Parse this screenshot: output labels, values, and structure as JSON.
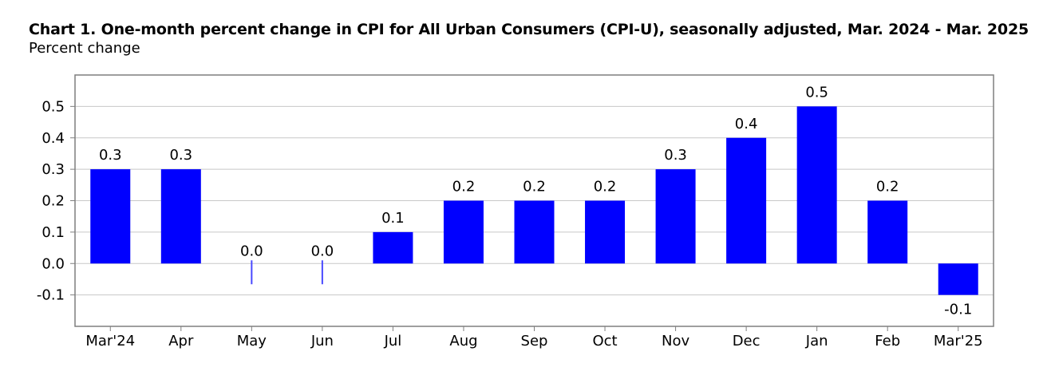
{
  "chart_data": {
    "type": "bar",
    "title": "Chart 1. One-month percent change in CPI for All Urban Consumers (CPI-U), seasonally adjusted, Mar. 2024 - Mar. 2025",
    "subtitle": "Percent change",
    "categories": [
      "Mar'24",
      "Apr",
      "May",
      "Jun",
      "Jul",
      "Aug",
      "Sep",
      "Oct",
      "Nov",
      "Dec",
      "Jan",
      "Feb",
      "Mar'25"
    ],
    "values": [
      0.3,
      0.3,
      0.0,
      0.0,
      0.1,
      0.2,
      0.2,
      0.2,
      0.3,
      0.4,
      0.5,
      0.2,
      -0.1
    ],
    "data_labels": [
      "0.3",
      "0.3",
      "0.0",
      "0.0",
      "0.1",
      "0.2",
      "0.2",
      "0.2",
      "0.3",
      "0.4",
      "0.5",
      "0.2",
      "-0.1"
    ],
    "y_ticks": [
      0.5,
      0.4,
      0.3,
      0.2,
      0.1,
      0.0,
      -0.1
    ],
    "y_tick_labels": [
      "0.5",
      "0.4",
      "0.3",
      "0.2",
      "0.1",
      "0.0",
      "-0.1"
    ],
    "ylim": [
      -0.2,
      0.6
    ],
    "grid": true,
    "bar_color": "#0000ff",
    "zero_marker_color": "#4a4aff",
    "grid_color": "#c8c8c8",
    "frame_color": "#7f7f7f"
  }
}
